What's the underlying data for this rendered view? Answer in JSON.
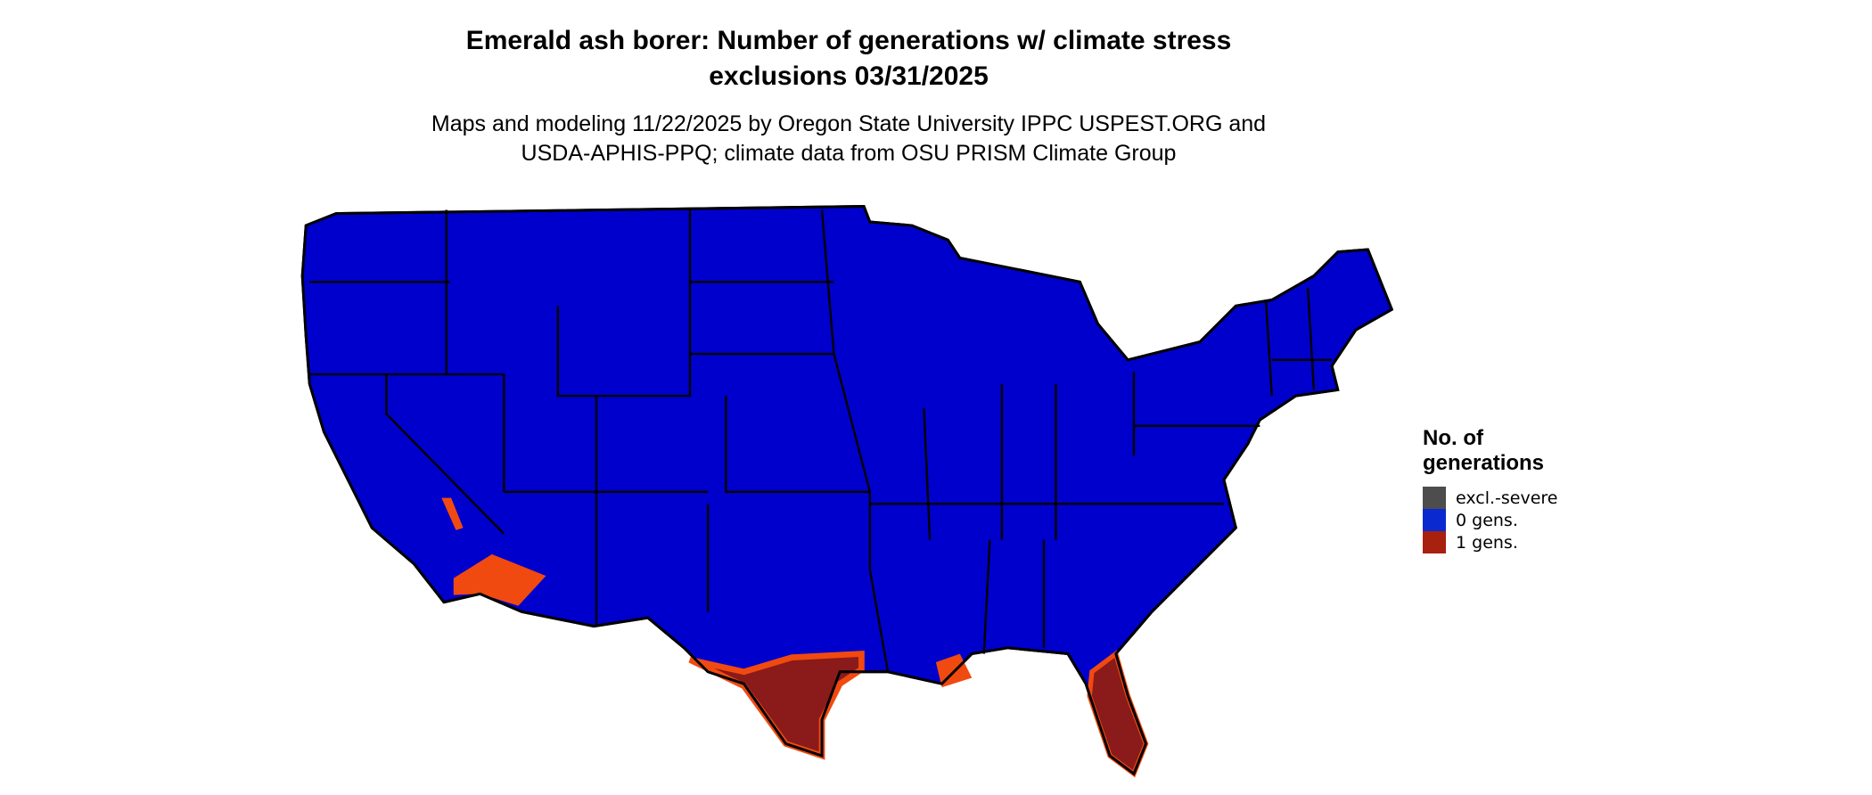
{
  "title": {
    "line1": "Emerald ash borer: Number of generations w/ climate stress",
    "line2": "exclusions 03/31/2025"
  },
  "subtitle": {
    "line1": "Maps and modeling 11/22/2025 by Oregon State University IPPC USPEST.ORG and",
    "line2": "USDA-APHIS-PPQ; climate data from OSU PRISM Climate Group"
  },
  "map": {
    "region": "Contiguous United States",
    "colors": {
      "zero_gens": "#0000cc",
      "one_gen_light": "#f04a10",
      "one_gen_dark": "#8b1a1a",
      "borders": "#000000"
    }
  },
  "legend": {
    "title_line1": "No. of",
    "title_line2": "generations",
    "items": [
      {
        "label": "excl.-severe",
        "color": "#4d4d4d"
      },
      {
        "label": "0 gens.",
        "color": "#0a2ad0"
      },
      {
        "label": "1 gens.",
        "color": "#a8200e"
      }
    ]
  }
}
